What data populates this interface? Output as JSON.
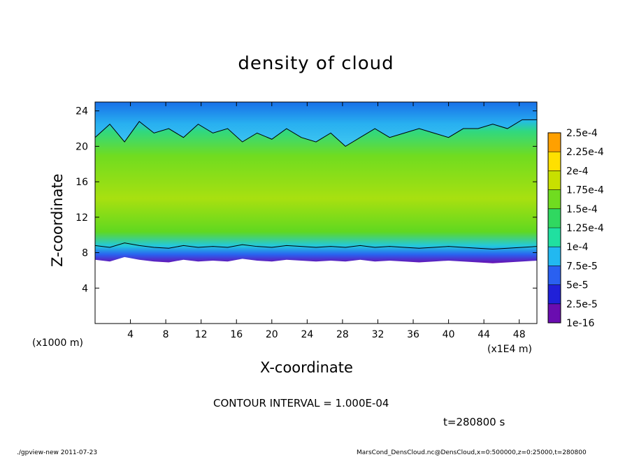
{
  "header": {
    "title": "density of cloud"
  },
  "footer": {
    "contour_interval": "CONTOUR INTERVAL = 1.000E-04",
    "time": "t=280800 s",
    "program": "./gpview-new  2011-07-23",
    "source": "MarsCond_DensCloud.nc@DensCloud,x=0:500000,z=0:25000,t=280800"
  },
  "chart_data": {
    "type": "heatmap",
    "title": "density of cloud",
    "xlabel": "X-coordinate",
    "ylabel": "Z-coordinate",
    "x_unit_left": "(x1000 m)",
    "x_unit_right": "(x1E4 m)",
    "xlim": [
      0,
      50
    ],
    "ylim": [
      0,
      25
    ],
    "x_ticks": [
      4,
      8,
      12,
      16,
      20,
      24,
      28,
      32,
      36,
      40,
      44,
      48
    ],
    "x_tick_labels": [
      "4",
      "8",
      "12",
      "16",
      "20",
      "24",
      "28",
      "32",
      "36",
      "40",
      "44",
      "48"
    ],
    "y_ticks": [
      4,
      8,
      12,
      16,
      20,
      24
    ],
    "y_tick_labels": [
      "4",
      "8",
      "12",
      "16",
      "20",
      "24"
    ],
    "colorbar": {
      "labels": [
        "1e-16",
        "2.5e-5",
        "5e-5",
        "7.5e-5",
        "1e-4",
        "1.25e-4",
        "1.5e-4",
        "1.75e-4",
        "2e-4",
        "2.25e-4",
        "2.5e-4"
      ],
      "values": [
        1e-16,
        2.5e-05,
        5e-05,
        7.5e-05,
        0.0001,
        0.000125,
        0.00015,
        0.000175,
        0.0002,
        0.000225,
        0.00025
      ],
      "colors": [
        "#6a0db0",
        "#2020d8",
        "#2a60f0",
        "#22b8f0",
        "#20e0a0",
        "#30d860",
        "#70dc20",
        "#c8e000",
        "#ffe000",
        "#ffa000",
        "#ff4020",
        "#ff8080"
      ]
    },
    "cloud_base_z": [
      7.2,
      7.0,
      7.5,
      7.2,
      7.0,
      6.9,
      7.2,
      7.0,
      7.1,
      7.0,
      7.3,
      7.1,
      7.0,
      7.2,
      7.1,
      7.0,
      7.1,
      7.0,
      7.2,
      7.0,
      7.1,
      7.0,
      6.9,
      7.0,
      7.1,
      7.0,
      6.9,
      6.8,
      6.9,
      7.0,
      7.1
    ],
    "cloud_top_z": [
      21.0,
      22.5,
      20.5,
      22.8,
      21.5,
      22.0,
      21.0,
      22.5,
      21.5,
      22.0,
      20.5,
      21.5,
      20.8,
      22.0,
      21.0,
      20.5,
      21.5,
      20.0,
      21.0,
      22.0,
      21.0,
      21.5,
      22.0,
      21.5,
      21.0,
      22.0,
      22.0,
      22.5,
      22.0,
      23.0,
      23.0
    ],
    "contour_interval": 0.0001,
    "time_s": 280800
  }
}
